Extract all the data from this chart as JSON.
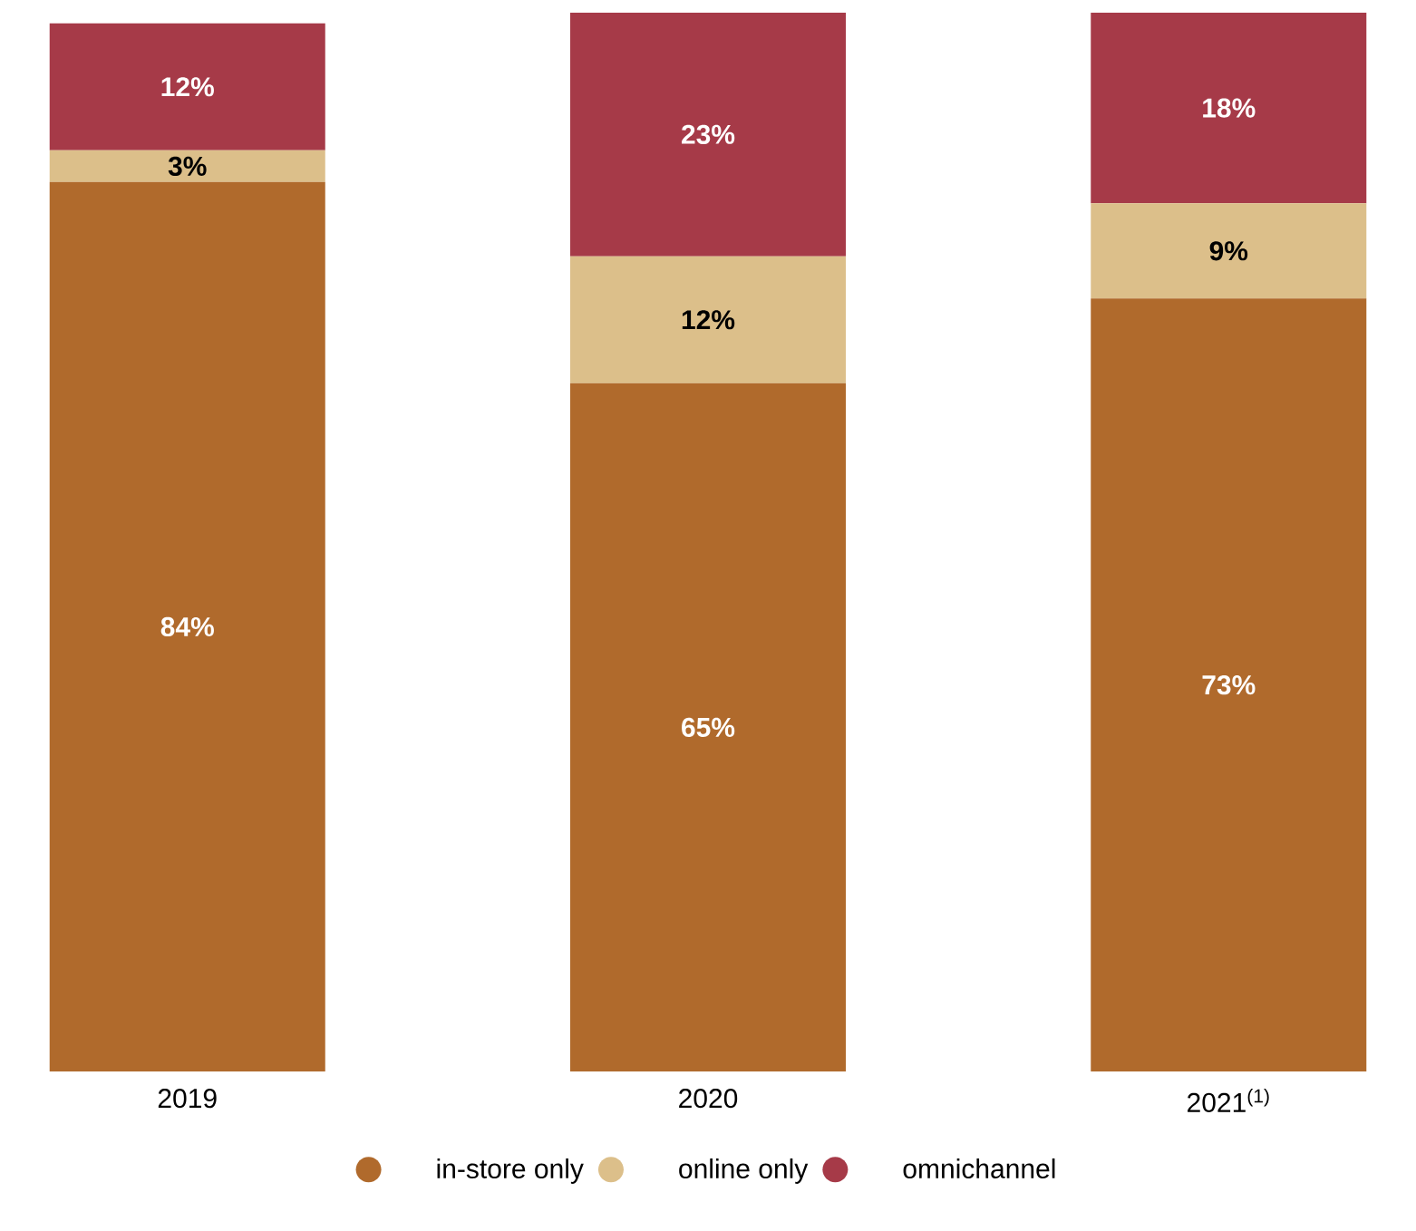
{
  "chart_data": {
    "type": "bar",
    "stacked": true,
    "categories": [
      "2019",
      "2020",
      "2021$^{(1)}$"
    ],
    "series": [
      {
        "name": "in-store only",
        "color": "#b06a2c",
        "values": [
          84,
          65,
          73
        ],
        "value_labels": [
          "84%",
          "65%",
          "73%"
        ]
      },
      {
        "name": "online only",
        "color": "#dcbf8a",
        "values": [
          3,
          12,
          9
        ],
        "value_labels": [
          "3%",
          "12%",
          "9%"
        ]
      },
      {
        "name": "omnichannel",
        "color": "#a63a48",
        "values": [
          12,
          23,
          18
        ],
        "value_labels": [
          "12%",
          "23%",
          "18%"
        ]
      }
    ],
    "legend": "bottom"
  }
}
